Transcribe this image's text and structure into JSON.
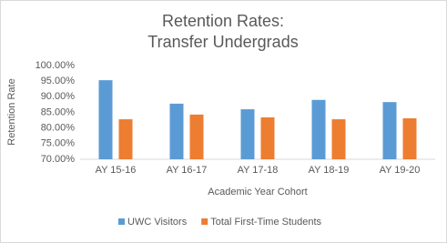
{
  "chart_data": {
    "type": "bar",
    "title": [
      "Retention Rates:",
      "Transfer Undergrads"
    ],
    "x_label": "Academic Year Cohort",
    "y_label": "Retention Rate",
    "categories": [
      "AY 15-16",
      "AY 16-17",
      "AY 17-18",
      "AY 18-19",
      "AY 19-20"
    ],
    "series": [
      {
        "name": "UWC Visitors",
        "color": "#5b9bd5",
        "values": [
          95.3,
          87.8,
          86.0,
          89.0,
          88.3
        ]
      },
      {
        "name": "Total First-Time Students",
        "color": "#ed7d31",
        "values": [
          82.8,
          84.3,
          83.4,
          82.8,
          83.1
        ]
      }
    ],
    "ylim": [
      70,
      100
    ],
    "yticks": [
      {
        "value": 70,
        "label": "70.00%"
      },
      {
        "value": 75,
        "label": "75.00%"
      },
      {
        "value": 80,
        "label": "80.00%"
      },
      {
        "value": 85,
        "label": "85.00%"
      },
      {
        "value": 90,
        "label": "90.00%"
      },
      {
        "value": 95,
        "label": "95.00%"
      },
      {
        "value": 100,
        "label": "100.00%"
      }
    ],
    "grid": false,
    "legend": "bottom"
  }
}
